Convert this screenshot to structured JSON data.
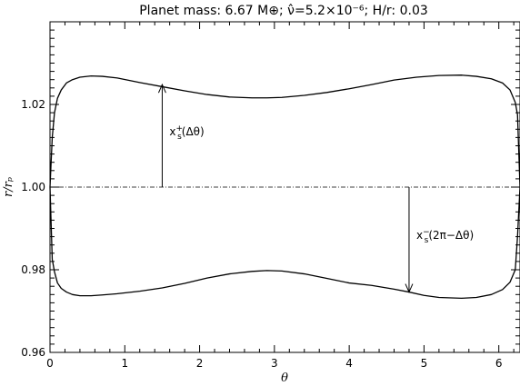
{
  "chart_data": {
    "type": "line",
    "title": "Planet mass: 6.67 M⊕; ν̂=5.2×10⁻⁶; H/r: 0.03",
    "xlabel": "θ",
    "ylabel": "r/rₚ",
    "xlim": [
      0,
      6.2832
    ],
    "ylim": [
      0.96,
      1.04
    ],
    "x_ticks": [
      0,
      1,
      2,
      3,
      4,
      5,
      6
    ],
    "x_tick_labels": [
      "0",
      "1",
      "2",
      "3",
      "4",
      "5",
      "6"
    ],
    "y_ticks": [
      0.96,
      0.98,
      1.0,
      1.02
    ],
    "y_tick_labels": [
      "0.96",
      "0.98",
      "1.00",
      "1.02"
    ],
    "grid": false,
    "series": [
      {
        "x": [
          0.0,
          0.03,
          0.06,
          0.1,
          0.15,
          0.22,
          0.3,
          0.4,
          0.55,
          0.7,
          0.9,
          1.2,
          1.5,
          1.8,
          2.1,
          2.4,
          2.7,
          2.9,
          3.1,
          3.4,
          3.7,
          4.0,
          4.3,
          4.6,
          4.9,
          5.2,
          5.5,
          5.7,
          5.9,
          6.05,
          6.15,
          6.22,
          6.25,
          6.2832
        ],
        "y": [
          1.0,
          1.012,
          1.018,
          1.0215,
          1.0235,
          1.0252,
          1.026,
          1.0266,
          1.0269,
          1.0268,
          1.0264,
          1.0253,
          1.0243,
          1.0233,
          1.0224,
          1.0218,
          1.0216,
          1.0216,
          1.0217,
          1.0222,
          1.0229,
          1.0238,
          1.0248,
          1.0259,
          1.0266,
          1.027,
          1.0271,
          1.0268,
          1.0262,
          1.0252,
          1.0235,
          1.0205,
          1.0175,
          1.0
        ]
      },
      {
        "x": [
          0.0,
          0.03,
          0.06,
          0.1,
          0.15,
          0.22,
          0.3,
          0.4,
          0.55,
          0.7,
          0.9,
          1.2,
          1.5,
          1.8,
          2.1,
          2.4,
          2.7,
          2.9,
          3.1,
          3.4,
          3.7,
          4.0,
          4.3,
          4.6,
          4.8,
          5.0,
          5.2,
          5.5,
          5.7,
          5.9,
          6.05,
          6.15,
          6.22,
          6.25,
          6.2832
        ],
        "y": [
          1.0,
          0.9825,
          0.9795,
          0.9768,
          0.9755,
          0.9746,
          0.974,
          0.9737,
          0.9737,
          0.9739,
          0.9742,
          0.9748,
          0.9756,
          0.9767,
          0.978,
          0.979,
          0.9796,
          0.9798,
          0.9797,
          0.979,
          0.9779,
          0.9768,
          0.9762,
          0.9753,
          0.9746,
          0.9738,
          0.9733,
          0.9731,
          0.9733,
          0.974,
          0.9752,
          0.977,
          0.98,
          0.988,
          1.0
        ]
      },
      {
        "x": [
          0.0,
          6.2832
        ],
        "y": [
          1.0,
          1.0
        ],
        "style": "dash-dot"
      }
    ],
    "annotations": [
      {
        "label_main": "x",
        "label_sub": "s",
        "label_sup": "+",
        "label_rest": "(Δθ)",
        "x": 1.5,
        "y_from": 1.0,
        "y_to": 1.0248
      },
      {
        "label_main": "x",
        "label_sub": "s",
        "label_sup": "−",
        "label_rest": "(2π−Δθ)",
        "x": 4.8,
        "y_from": 1.0,
        "y_to": 0.9746
      }
    ]
  }
}
